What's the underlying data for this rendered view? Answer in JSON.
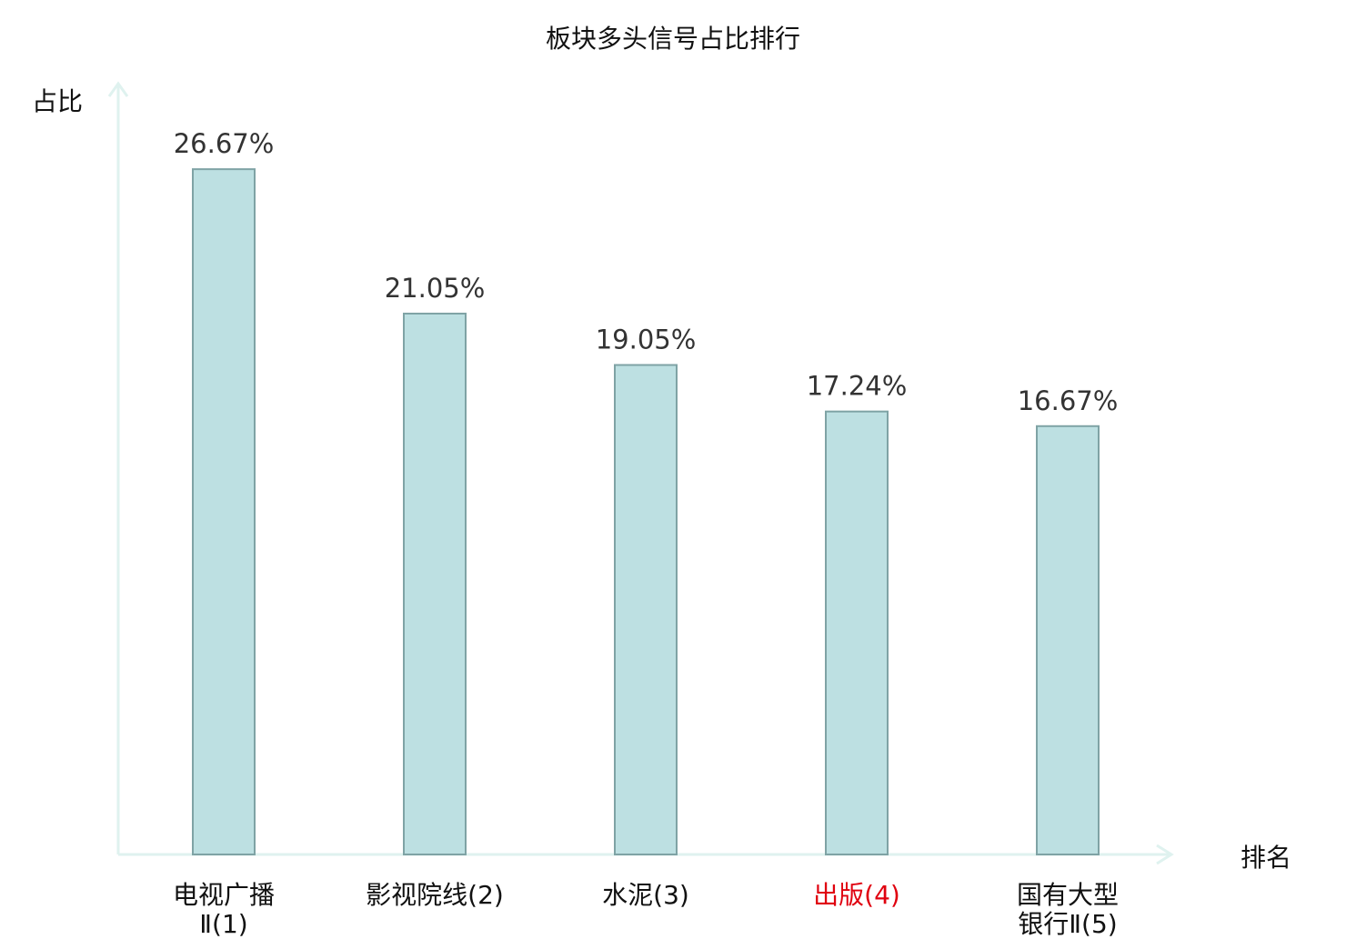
{
  "chart_data": {
    "type": "bar",
    "title": "板块多头信号占比排行",
    "xlabel": "排名",
    "ylabel": "占比",
    "categories": [
      [
        "电视广播",
        "Ⅱ(1)"
      ],
      [
        "影视院线(2)"
      ],
      [
        "水泥(3)"
      ],
      [
        "出版(4)"
      ],
      [
        "国有大型",
        "银行Ⅱ(5)"
      ]
    ],
    "values": [
      26.67,
      21.05,
      19.05,
      17.24,
      16.67
    ],
    "value_labels": [
      "26.67%",
      "21.05%",
      "19.05%",
      "17.24%",
      "16.67%"
    ],
    "ylim": [
      0,
      30
    ],
    "grid": false,
    "highlight_index": 3,
    "colors": {
      "bar_fill": "#bde0e2",
      "bar_stroke": "#7fa3a5",
      "axis": "#dff2ef",
      "label": "#333333",
      "highlight": "#e0000f"
    }
  }
}
